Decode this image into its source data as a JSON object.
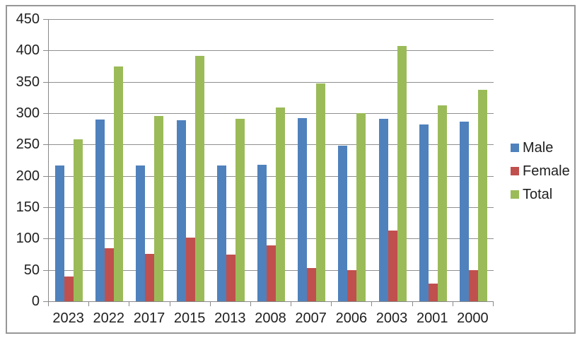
{
  "chart_data": {
    "type": "bar",
    "title": "",
    "xlabel": "",
    "ylabel": "",
    "categories": [
      "2023",
      "2022",
      "2017",
      "2015",
      "2013",
      "2008",
      "2007",
      "2006",
      "2003",
      "2001",
      "2000"
    ],
    "series": [
      {
        "name": "Male",
        "color": "#4F81BD",
        "values": [
          216,
          290,
          216,
          289,
          216,
          218,
          292,
          248,
          291,
          282,
          287
        ]
      },
      {
        "name": "Female",
        "color": "#C0504D",
        "values": [
          40,
          85,
          76,
          101,
          74,
          89,
          53,
          50,
          113,
          28,
          50
        ]
      },
      {
        "name": "Total",
        "color": "#9BBB59",
        "values": [
          258,
          375,
          295,
          391,
          291,
          309,
          347,
          300,
          407,
          312,
          337
        ]
      }
    ],
    "ylim": [
      0,
      450
    ],
    "ytick_step": 50,
    "ytick_labels": [
      "0",
      "50",
      "100",
      "150",
      "200",
      "250",
      "300",
      "350",
      "400",
      "450"
    ],
    "grid": true,
    "legend_position": "right",
    "legend_entries": [
      "Male",
      "Female",
      "Total"
    ]
  },
  "colors": {
    "male_bar": "#4F81BD",
    "female_bar": "#C0504D",
    "total_bar": "#9BBB59",
    "gridline": "#8F8F8F",
    "axis_line": "#898989",
    "chart_border": "#979797",
    "label_text": "#1F1F1F",
    "background": "#FFFFFF"
  }
}
